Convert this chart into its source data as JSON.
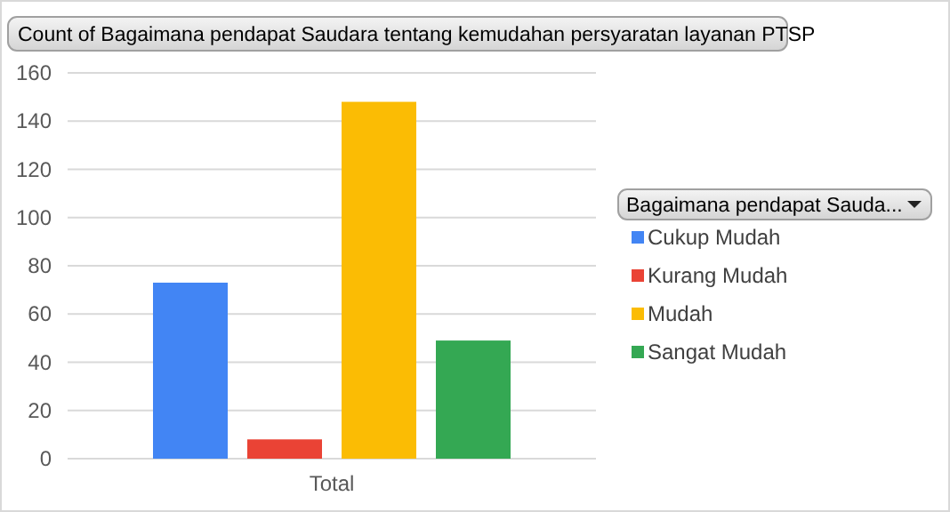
{
  "chart_data": {
    "type": "bar",
    "title": "Count of Bagaimana pendapat Saudara tentang kemudahan persyaratan layanan PTSP",
    "legend_title": "Bagaimana pendapat Sauda...",
    "categories": [
      "Total"
    ],
    "series": [
      {
        "name": "Cukup Mudah",
        "color": "#4285f4",
        "values": [
          73
        ]
      },
      {
        "name": "Kurang Mudah",
        "color": "#ea4335",
        "values": [
          8
        ]
      },
      {
        "name": "Mudah",
        "color": "#fbbc04",
        "values": [
          148
        ]
      },
      {
        "name": "Sangat Mudah",
        "color": "#34a853",
        "values": [
          49
        ]
      }
    ],
    "ylim": [
      0,
      160
    ],
    "yticks": [
      0,
      20,
      40,
      60,
      80,
      100,
      120,
      140,
      160
    ],
    "grid": "y",
    "legend": "right"
  }
}
